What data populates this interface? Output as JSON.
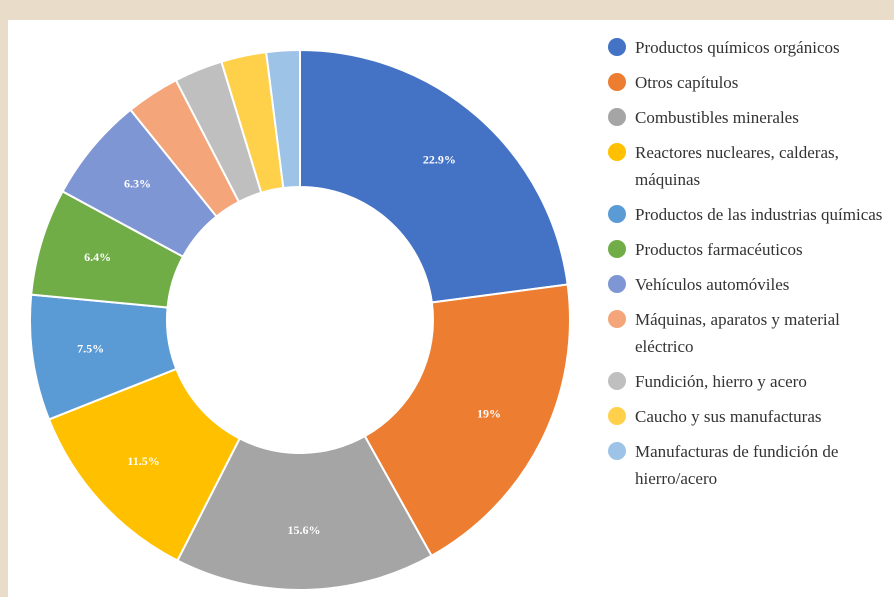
{
  "chart_data": {
    "type": "donut",
    "categories": [
      "Productos químicos orgánicos",
      "Otros capítulos",
      "Combustibles minerales",
      "Reactores nucleares, calderas, máquinas",
      "Productos de las industrias químicas",
      "Productos farmacéuticos",
      "Vehículos automóviles",
      "Máquinas, aparatos y material eléctrico",
      "Fundición, hierro y acero",
      "Caucho y sus manufacturas",
      "Manufacturas de fundición de hierro/acero"
    ],
    "values": [
      22.9,
      19,
      15.6,
      11.5,
      7.5,
      6.4,
      6.3,
      3.2,
      2.9,
      2.7,
      2.0
    ],
    "value_labels": [
      "22.9%",
      "19%",
      "15.6%",
      "11.5%",
      "7.5%",
      "6.4%",
      "6.3%",
      null,
      null,
      null,
      null
    ],
    "colors": [
      "#4472c4",
      "#ed7d31",
      "#a5a5a5",
      "#ffc000",
      "#5b9bd5",
      "#70ad47",
      "#7f96d4",
      "#f4a57a",
      "#bfbfbf",
      "#ffd04a",
      "#9dc3e6"
    ]
  }
}
